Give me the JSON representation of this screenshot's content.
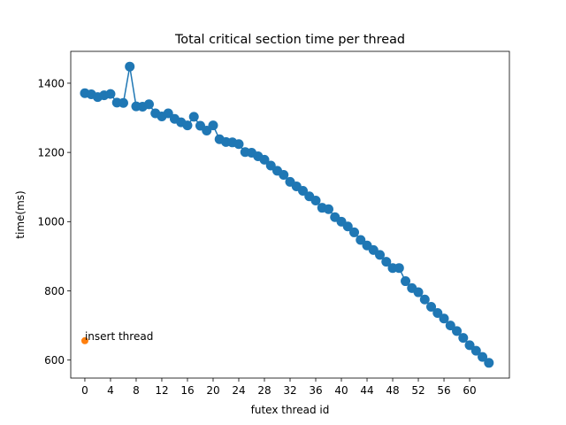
{
  "chart_data": {
    "type": "line",
    "title": "Total critical section time per thread",
    "xlabel": "futex thread id",
    "ylabel": "time(ms)",
    "xlim": [
      -2.2,
      66.2
    ],
    "ylim": [
      548,
      1492
    ],
    "xticks": [
      0,
      4,
      8,
      12,
      16,
      20,
      24,
      28,
      32,
      36,
      40,
      44,
      48,
      52,
      56,
      60
    ],
    "yticks": [
      600,
      800,
      1000,
      1200,
      1400
    ],
    "grid": false,
    "series": [
      {
        "color": "#1f77b4",
        "marker": "circle",
        "line": true,
        "x": [
          0,
          1,
          2,
          3,
          4,
          5,
          6,
          7,
          8,
          9,
          10,
          11,
          12,
          13,
          14,
          15,
          16,
          17,
          18,
          19,
          20,
          21,
          22,
          23,
          24,
          25,
          26,
          27,
          28,
          29,
          30,
          31,
          32,
          33,
          34,
          35,
          36,
          37,
          38,
          39,
          40,
          41,
          42,
          43,
          44,
          45,
          46,
          47,
          48,
          49,
          50,
          51,
          52,
          53,
          54,
          55,
          56,
          57,
          58,
          59,
          60,
          61,
          62,
          63
        ],
        "values": [
          1371,
          1368,
          1360,
          1365,
          1369,
          1344,
          1343,
          1448,
          1333,
          1332,
          1339,
          1313,
          1304,
          1313,
          1297,
          1287,
          1278,
          1303,
          1277,
          1263,
          1278,
          1238,
          1230,
          1229,
          1224,
          1201,
          1199,
          1189,
          1179,
          1162,
          1147,
          1135,
          1115,
          1102,
          1089,
          1073,
          1061,
          1040,
          1036,
          1013,
          1000,
          986,
          969,
          947,
          931,
          918,
          904,
          884,
          866,
          866,
          828,
          808,
          796,
          775,
          754,
          736,
          720,
          700,
          684,
          664,
          643,
          627,
          609,
          592
        ]
      },
      {
        "color": "#ff7f0e",
        "marker": "circle",
        "line": false,
        "x": [
          0
        ],
        "values": [
          656
        ]
      }
    ],
    "annotations": [
      {
        "text": "insert thread",
        "x": 0,
        "y": 656
      }
    ]
  }
}
